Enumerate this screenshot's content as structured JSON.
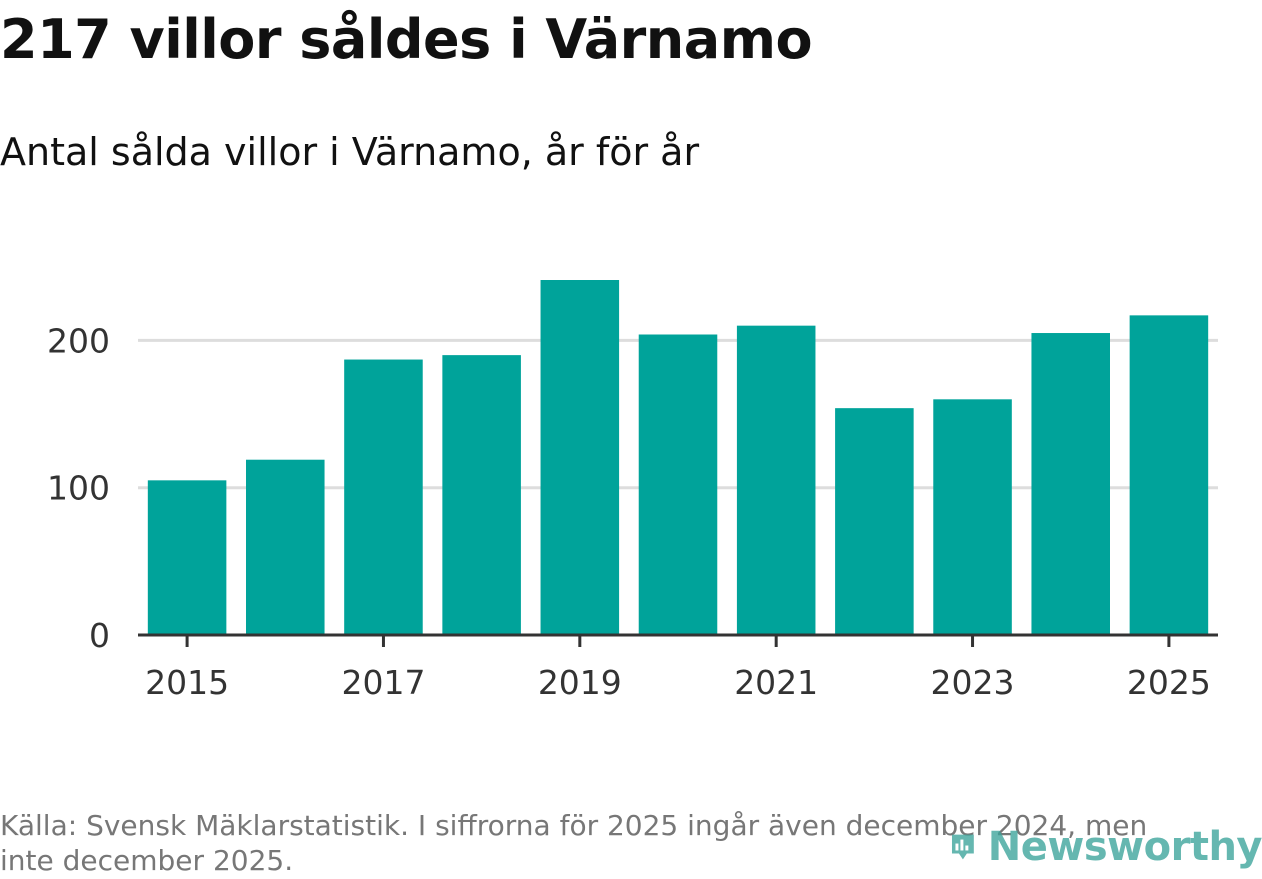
{
  "title": "217 villor såldes i Värnamo",
  "subtitle": "Antal sålda villor i Värnamo, år för år",
  "source": "Källa: Svensk Mäklarstatistik. I siffrorna för 2025 ingår även december 2024, men inte december 2025.",
  "brand": {
    "name": "Newsworthy",
    "icon": "chart-pin-icon",
    "color": "#3ba39a"
  },
  "colors": {
    "bar": "#00a39a",
    "grid": "#dddddd",
    "axis": "#333333"
  },
  "chart_data": {
    "type": "bar",
    "title": "217 villor såldes i Värnamo",
    "subtitle": "Antal sålda villor i Värnamo, år för år",
    "xlabel": "",
    "ylabel": "",
    "categories": [
      "2015",
      "2016",
      "2017",
      "2018",
      "2019",
      "2020",
      "2021",
      "2022",
      "2023",
      "2024",
      "2025"
    ],
    "values": [
      105,
      119,
      187,
      190,
      241,
      204,
      210,
      154,
      160,
      205,
      217
    ],
    "ylim": [
      0,
      241
    ],
    "yticks": [
      0,
      100,
      200
    ],
    "xticks": [
      "2015",
      "2017",
      "2019",
      "2021",
      "2023",
      "2025"
    ],
    "grid": true,
    "legend": "none"
  }
}
